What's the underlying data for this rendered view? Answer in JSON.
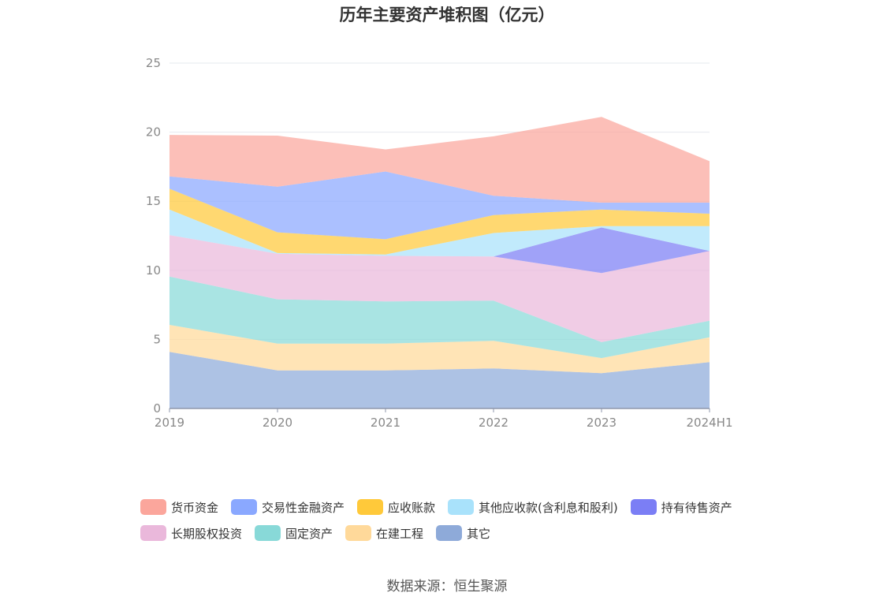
{
  "page": {
    "source_note": "数据来源：恒生聚源"
  },
  "chart_data": {
    "type": "area",
    "stacked": true,
    "title": "历年主要资产堆积图（亿元）",
    "xlabel": "",
    "ylabel": "",
    "categories": [
      "2019",
      "2020",
      "2021",
      "2022",
      "2023",
      "2024H1"
    ],
    "ylim": [
      0,
      25
    ],
    "yticks": [
      0,
      5,
      10,
      15,
      20,
      25
    ],
    "grid": true,
    "legend_position": "bottom",
    "series": [
      {
        "name": "其它",
        "color": "#8eaad9",
        "values": [
          4.1,
          2.75,
          2.75,
          2.9,
          2.55,
          3.35
        ]
      },
      {
        "name": "在建工程",
        "color": "#ffd99a",
        "values": [
          1.95,
          1.95,
          1.95,
          2.0,
          1.1,
          1.8
        ]
      },
      {
        "name": "固定资产",
        "color": "#88d9d8",
        "values": [
          3.5,
          3.2,
          3.05,
          2.9,
          1.15,
          1.2
        ]
      },
      {
        "name": "长期股权投资",
        "color": "#eab8db",
        "values": [
          3.0,
          3.3,
          3.3,
          3.2,
          5.0,
          5.05
        ]
      },
      {
        "name": "持有待售资产",
        "color": "#7b7ef5",
        "values": [
          0,
          0,
          0,
          0,
          3.3,
          0
        ]
      },
      {
        "name": "其他应收款(含利息和股利)",
        "color": "#a9e2fb",
        "values": [
          1.85,
          0.05,
          0.1,
          1.7,
          0.1,
          1.8
        ]
      },
      {
        "name": "应收账款",
        "color": "#ffc93a",
        "values": [
          1.5,
          1.5,
          1.1,
          1.3,
          1.2,
          0.9
        ]
      },
      {
        "name": "交易性金融资产",
        "color": "#8aa8ff",
        "values": [
          0.9,
          3.3,
          4.9,
          1.4,
          0.5,
          0.8
        ]
      },
      {
        "name": "货币资金",
        "color": "#fba69c",
        "values": [
          3.0,
          3.7,
          1.6,
          4.3,
          6.2,
          3.0
        ]
      }
    ],
    "legend_order": [
      "货币资金",
      "交易性金融资产",
      "应收账款",
      "其他应收款(含利息和股利)",
      "持有待售资产",
      "长期股权投资",
      "固定资产",
      "在建工程",
      "其它"
    ]
  }
}
